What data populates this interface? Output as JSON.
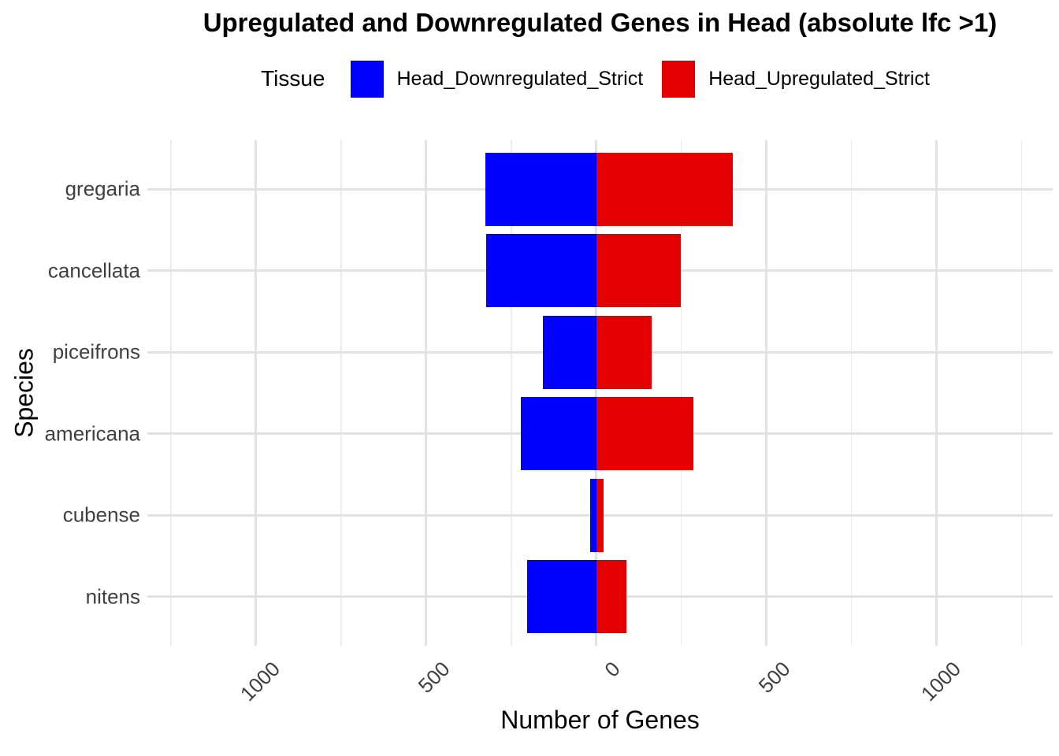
{
  "title": "Upregulated and Downregulated Genes in Head (absolute lfc >1)",
  "legend": {
    "title": "Tissue",
    "items": [
      {
        "label": "Head_Downregulated_Strict",
        "color": "#0000FF"
      },
      {
        "label": "Head_Upregulated_Strict",
        "color": "#E50000"
      }
    ]
  },
  "x_axis": {
    "title": "Number of Genes",
    "ticks": [
      {
        "value": -1000,
        "label": "1000"
      },
      {
        "value": -500,
        "label": "500"
      },
      {
        "value": 0,
        "label": "0"
      },
      {
        "value": 500,
        "label": "500"
      },
      {
        "value": 1000,
        "label": "1000"
      }
    ]
  },
  "y_axis": {
    "title": "Species"
  },
  "chart_data": {
    "type": "bar",
    "orientation": "horizontal",
    "diverging": true,
    "title": "Upregulated and Downregulated Genes in Head (absolute lfc >1)",
    "xlabel": "Number of Genes",
    "ylabel": "Species",
    "categories": [
      "gregaria",
      "cancellata",
      "piceifrons",
      "americana",
      "cubense",
      "nitens"
    ],
    "series": [
      {
        "name": "Head_Downregulated_Strict",
        "color": "#0000FF",
        "values": [
          -325,
          -324,
          -157,
          -222,
          -17,
          -202
        ]
      },
      {
        "name": "Head_Upregulated_Strict",
        "color": "#E50000",
        "values": [
          400,
          248,
          162,
          285,
          21,
          89
        ]
      }
    ],
    "xlim": [
      -1319,
      1341
    ],
    "x_major_ticks": [
      -1000,
      -500,
      0,
      500,
      1000
    ],
    "x_minor_step": 250,
    "grid": true,
    "legend_position": "top",
    "colors": {
      "grid_major": "#E2E2E2",
      "grid_minor": "#ECECEC",
      "axis_text": "#404040",
      "axis_title": "#000000",
      "background": "#FFFFFF"
    }
  }
}
